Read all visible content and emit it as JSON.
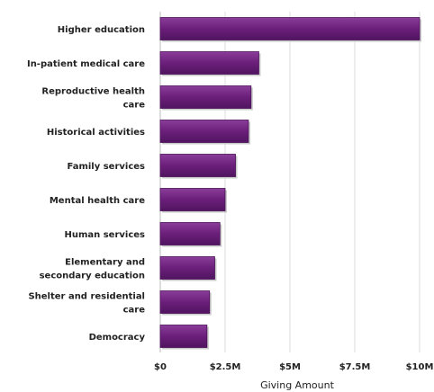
{
  "chart_data": {
    "type": "bar",
    "orientation": "horizontal",
    "title": "",
    "xlabel": "Giving Amount",
    "ylabel": "",
    "categories": [
      [
        "Higher education"
      ],
      [
        "In-patient medical care"
      ],
      [
        "Reproductive health",
        "care"
      ],
      [
        "Historical activities"
      ],
      [
        "Family services"
      ],
      [
        "Mental health care"
      ],
      [
        "Human services"
      ],
      [
        "Elementary and",
        "secondary education"
      ],
      [
        "Shelter and residential",
        "care"
      ],
      [
        "Democracy"
      ]
    ],
    "values": [
      10000000,
      3800000,
      3500000,
      3400000,
      2900000,
      2500000,
      2300000,
      2100000,
      1900000,
      1800000
    ],
    "xlim": [
      0,
      10000000
    ],
    "xticks": [
      0,
      2500000,
      5000000,
      7500000,
      10000000
    ],
    "xtick_labels": [
      "$0",
      "$2.5M",
      "$5M",
      "$7.5M",
      "$10M"
    ],
    "grid": "vertical",
    "legend": "none",
    "bar_color": "#6b1f7a"
  }
}
